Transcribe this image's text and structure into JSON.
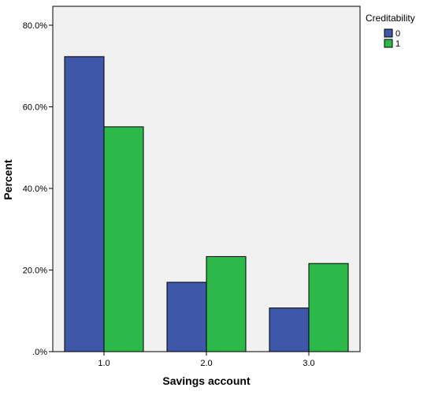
{
  "chart_data": {
    "type": "bar",
    "title": "",
    "xlabel": "Savings account",
    "ylabel": "Percent",
    "categories": [
      "1.0",
      "2.0",
      "3.0"
    ],
    "series": [
      {
        "name": "0",
        "values": [
          72.3,
          17.0,
          10.7
        ],
        "color": "#3f57a8"
      },
      {
        "name": "1",
        "values": [
          55.1,
          23.3,
          21.6
        ],
        "color": "#2db84a"
      }
    ],
    "ylim": [
      0,
      80
    ],
    "yticks": [
      0,
      20,
      40,
      60,
      80
    ],
    "ytick_labels": [
      ".0%",
      "20.0%",
      "40.0%",
      "60.0%",
      "80.0%"
    ],
    "legend": {
      "title": "Creditability",
      "placement": "top-right outside"
    },
    "grid": false,
    "plot_background": "#f0f0f0"
  }
}
